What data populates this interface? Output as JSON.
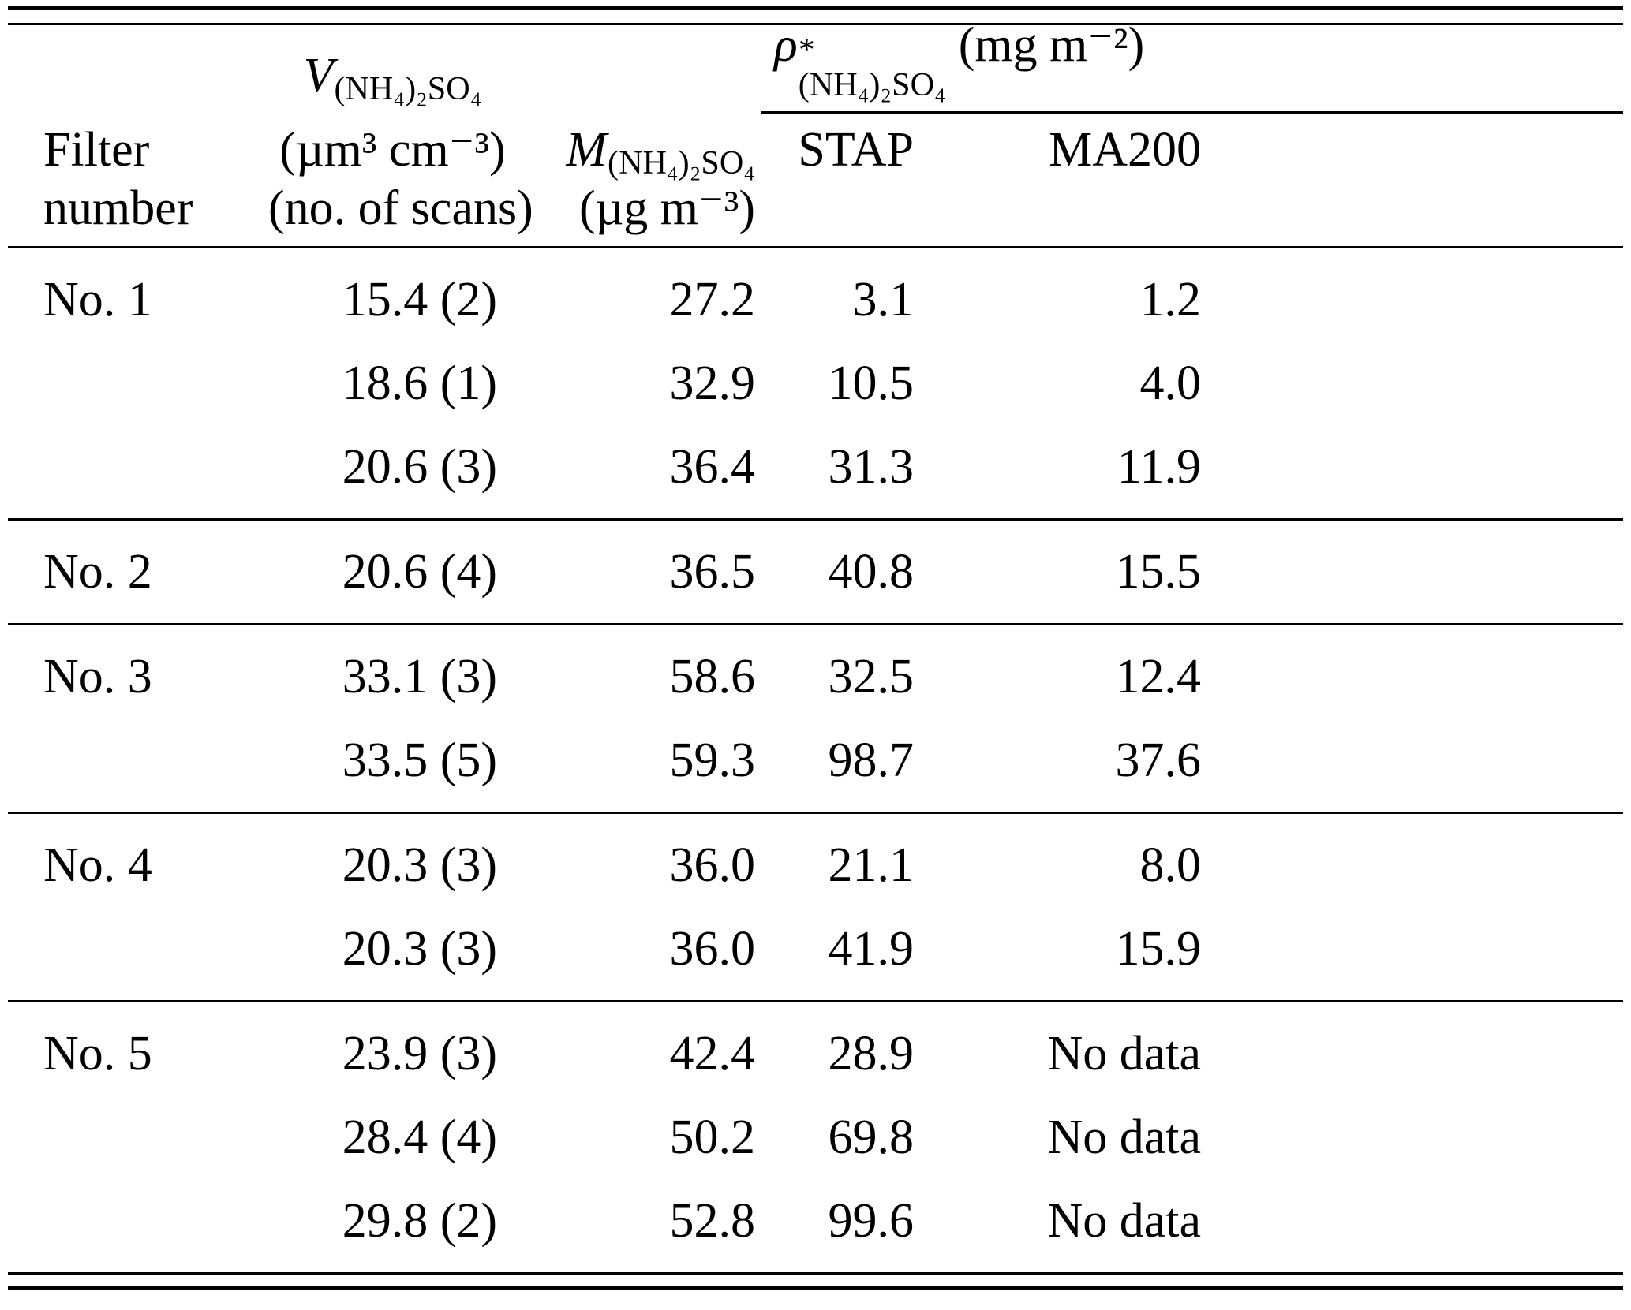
{
  "table": {
    "header": {
      "filter_line1": "Filter",
      "filter_line2": "number",
      "v": {
        "symbol": "V",
        "subscript": "(NH₄)₂SO₄"
      },
      "v_unit_line1": "(µm³ cm⁻³)",
      "v_unit_line2": "(no. of scans)",
      "m": {
        "symbol": "M",
        "subscript": "(NH₄)₂SO₄"
      },
      "m_unit": "(µg m⁻³)",
      "rho": {
        "symbol": "ρ",
        "sup": "*",
        "subscript": "(NH₄)₂SO₄",
        "unit": "(mg m⁻²)"
      },
      "sub_col1": "STAP",
      "sub_col2": "MA200"
    },
    "groups": [
      {
        "filter": "No. 1",
        "rows": [
          {
            "v": "15.4 (2)",
            "m": "27.2",
            "stap": "3.1",
            "ma200": "1.2"
          },
          {
            "v": "18.6 (1)",
            "m": "32.9",
            "stap": "10.5",
            "ma200": "4.0"
          },
          {
            "v": "20.6 (3)",
            "m": "36.4",
            "stap": "31.3",
            "ma200": "11.9"
          }
        ]
      },
      {
        "filter": "No. 2",
        "rows": [
          {
            "v": "20.6 (4)",
            "m": "36.5",
            "stap": "40.8",
            "ma200": "15.5"
          }
        ]
      },
      {
        "filter": "No. 3",
        "rows": [
          {
            "v": "33.1 (3)",
            "m": "58.6",
            "stap": "32.5",
            "ma200": "12.4"
          },
          {
            "v": "33.5 (5)",
            "m": "59.3",
            "stap": "98.7",
            "ma200": "37.6"
          }
        ]
      },
      {
        "filter": "No. 4",
        "rows": [
          {
            "v": "20.3 (3)",
            "m": "36.0",
            "stap": "21.1",
            "ma200": "8.0"
          },
          {
            "v": "20.3 (3)",
            "m": "36.0",
            "stap": "41.9",
            "ma200": "15.9"
          }
        ]
      },
      {
        "filter": "No. 5",
        "rows": [
          {
            "v": "23.9 (3)",
            "m": "42.4",
            "stap": "28.9",
            "ma200": "No data"
          },
          {
            "v": "28.4 (4)",
            "m": "50.2",
            "stap": "69.8",
            "ma200": "No data"
          },
          {
            "v": "29.8 (2)",
            "m": "52.8",
            "stap": "99.6",
            "ma200": "No data"
          }
        ]
      }
    ]
  }
}
